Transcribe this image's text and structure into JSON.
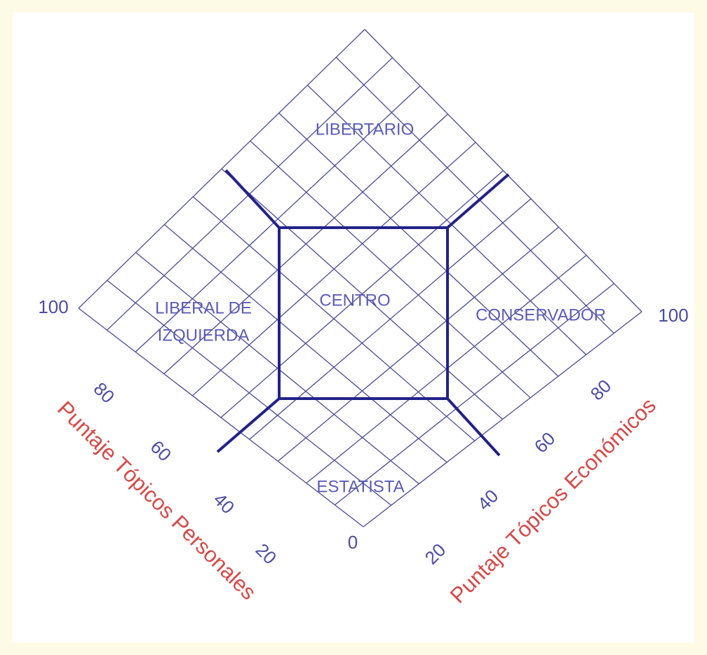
{
  "regions": {
    "top": "LIBERTARIO",
    "left": [
      "LIBERAL DE",
      "IZQUIERDA"
    ],
    "center": "CENTRO",
    "right": "CONSERVADOR",
    "bottom": "ESTATISTA"
  },
  "left_axis": {
    "title": "Puntaje Tópicos Personales",
    "ticks": [
      "0",
      "20",
      "40",
      "60",
      "80",
      "100"
    ]
  },
  "right_axis": {
    "title": "Puntaje Tópicos Económicos",
    "ticks": [
      "0",
      "20",
      "40",
      "60",
      "80",
      "100"
    ]
  }
}
